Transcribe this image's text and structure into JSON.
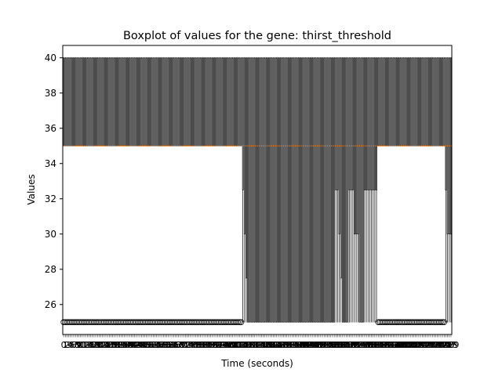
{
  "chart_data": {
    "type": "boxplot",
    "title": "Boxplot of values for the gene: thirst_threshold",
    "xlabel": "Time (seconds)",
    "ylabel": "Values",
    "ylim": [
      24.3,
      40.7
    ],
    "yticks": [
      26,
      28,
      30,
      32,
      34,
      36,
      38,
      40
    ],
    "n_boxes": 230,
    "grid": false,
    "colors": {
      "box": "#000000",
      "median": "#ff7f0e",
      "background": "#ffffff"
    },
    "groups": [
      {
        "from": 0,
        "to": 105,
        "q1": 35,
        "median": 35,
        "q3": 40,
        "whisker_low": 35,
        "whisker_high": 40,
        "outliers": [
          25
        ]
      },
      {
        "from": 106,
        "to": 106,
        "q1": 32.5,
        "median": 35,
        "q3": 40,
        "whisker_low": 25,
        "whisker_high": 40,
        "outliers": []
      },
      {
        "from": 107,
        "to": 107,
        "q1": 30,
        "median": 35,
        "q3": 40,
        "whisker_low": 25,
        "whisker_high": 40,
        "outliers": []
      },
      {
        "from": 108,
        "to": 108,
        "q1": 27.5,
        "median": 35,
        "q3": 40,
        "whisker_low": 25,
        "whisker_high": 40,
        "outliers": []
      },
      {
        "from": 109,
        "to": 160,
        "q1": 25,
        "median": 35,
        "q3": 40,
        "whisker_low": 25,
        "whisker_high": 40,
        "outliers": []
      },
      {
        "from": 161,
        "to": 162,
        "q1": 32.5,
        "median": 35,
        "q3": 40,
        "whisker_low": 25,
        "whisker_high": 40,
        "outliers": []
      },
      {
        "from": 163,
        "to": 163,
        "q1": 30,
        "median": 35,
        "q3": 40,
        "whisker_low": 25,
        "whisker_high": 40,
        "outliers": []
      },
      {
        "from": 164,
        "to": 164,
        "q1": 27.5,
        "median": 35,
        "q3": 40,
        "whisker_low": 25,
        "whisker_high": 40,
        "outliers": []
      },
      {
        "from": 165,
        "to": 168,
        "q1": 25,
        "median": 35,
        "q3": 40,
        "whisker_low": 25,
        "whisker_high": 40,
        "outliers": []
      },
      {
        "from": 169,
        "to": 171,
        "q1": 32.5,
        "median": 35,
        "q3": 40,
        "whisker_low": 25,
        "whisker_high": 40,
        "outliers": []
      },
      {
        "from": 172,
        "to": 174,
        "q1": 30,
        "median": 35,
        "q3": 40,
        "whisker_low": 25,
        "whisker_high": 40,
        "outliers": []
      },
      {
        "from": 175,
        "to": 177,
        "q1": 25,
        "median": 35,
        "q3": 40,
        "whisker_low": 25,
        "whisker_high": 40,
        "outliers": []
      },
      {
        "from": 178,
        "to": 185,
        "q1": 32.5,
        "median": 35,
        "q3": 40,
        "whisker_low": 25,
        "whisker_high": 40,
        "outliers": []
      },
      {
        "from": 186,
        "to": 225,
        "q1": 35,
        "median": 35,
        "q3": 40,
        "whisker_low": 35,
        "whisker_high": 40,
        "outliers": [
          25
        ]
      },
      {
        "from": 226,
        "to": 226,
        "q1": 32.5,
        "median": 35,
        "q3": 40,
        "whisker_low": 25,
        "whisker_high": 40,
        "outliers": []
      },
      {
        "from": 227,
        "to": 229,
        "q1": 30,
        "median": 35,
        "q3": 40,
        "whisker_low": 25,
        "whisker_high": 40,
        "outliers": []
      }
    ]
  }
}
